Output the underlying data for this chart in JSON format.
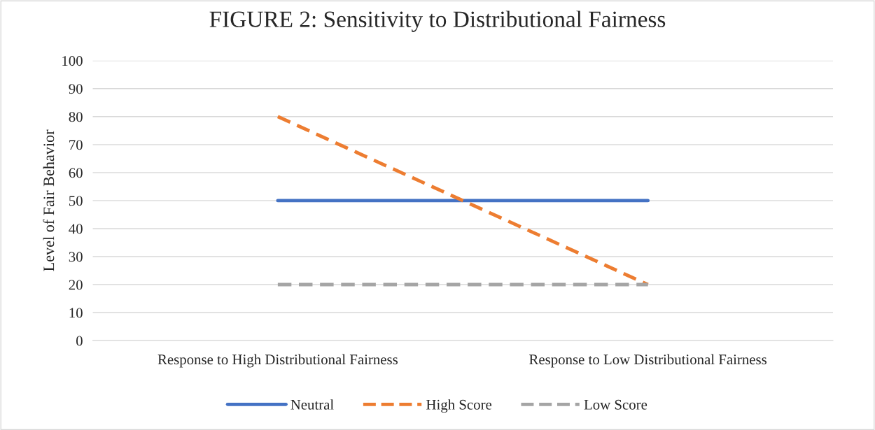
{
  "chart_data": {
    "type": "line",
    "title": "FIGURE 2: Sensitivity to Distributional Fairness",
    "ylabel": "Level of Fair Behavior",
    "categories": [
      "Response to High Distributional Fairness",
      "Response to Low Distributional Fairness"
    ],
    "series": [
      {
        "name": "Neutral",
        "color": "#4472c4",
        "values": [
          50,
          50
        ],
        "line_style": "solid"
      },
      {
        "name": "High Score",
        "color": "#ed7d31",
        "values": [
          80,
          20
        ],
        "line_style": "dashed"
      },
      {
        "name": "Low Score",
        "color": "#a5a5a5",
        "values": [
          20,
          20
        ],
        "line_style": "dashed"
      }
    ],
    "ylim": [
      0,
      100
    ],
    "yticks": [
      0,
      10,
      20,
      30,
      40,
      50,
      60,
      70,
      80,
      90,
      100
    ],
    "grid": "y",
    "legend": "bottom",
    "marker": "none"
  }
}
